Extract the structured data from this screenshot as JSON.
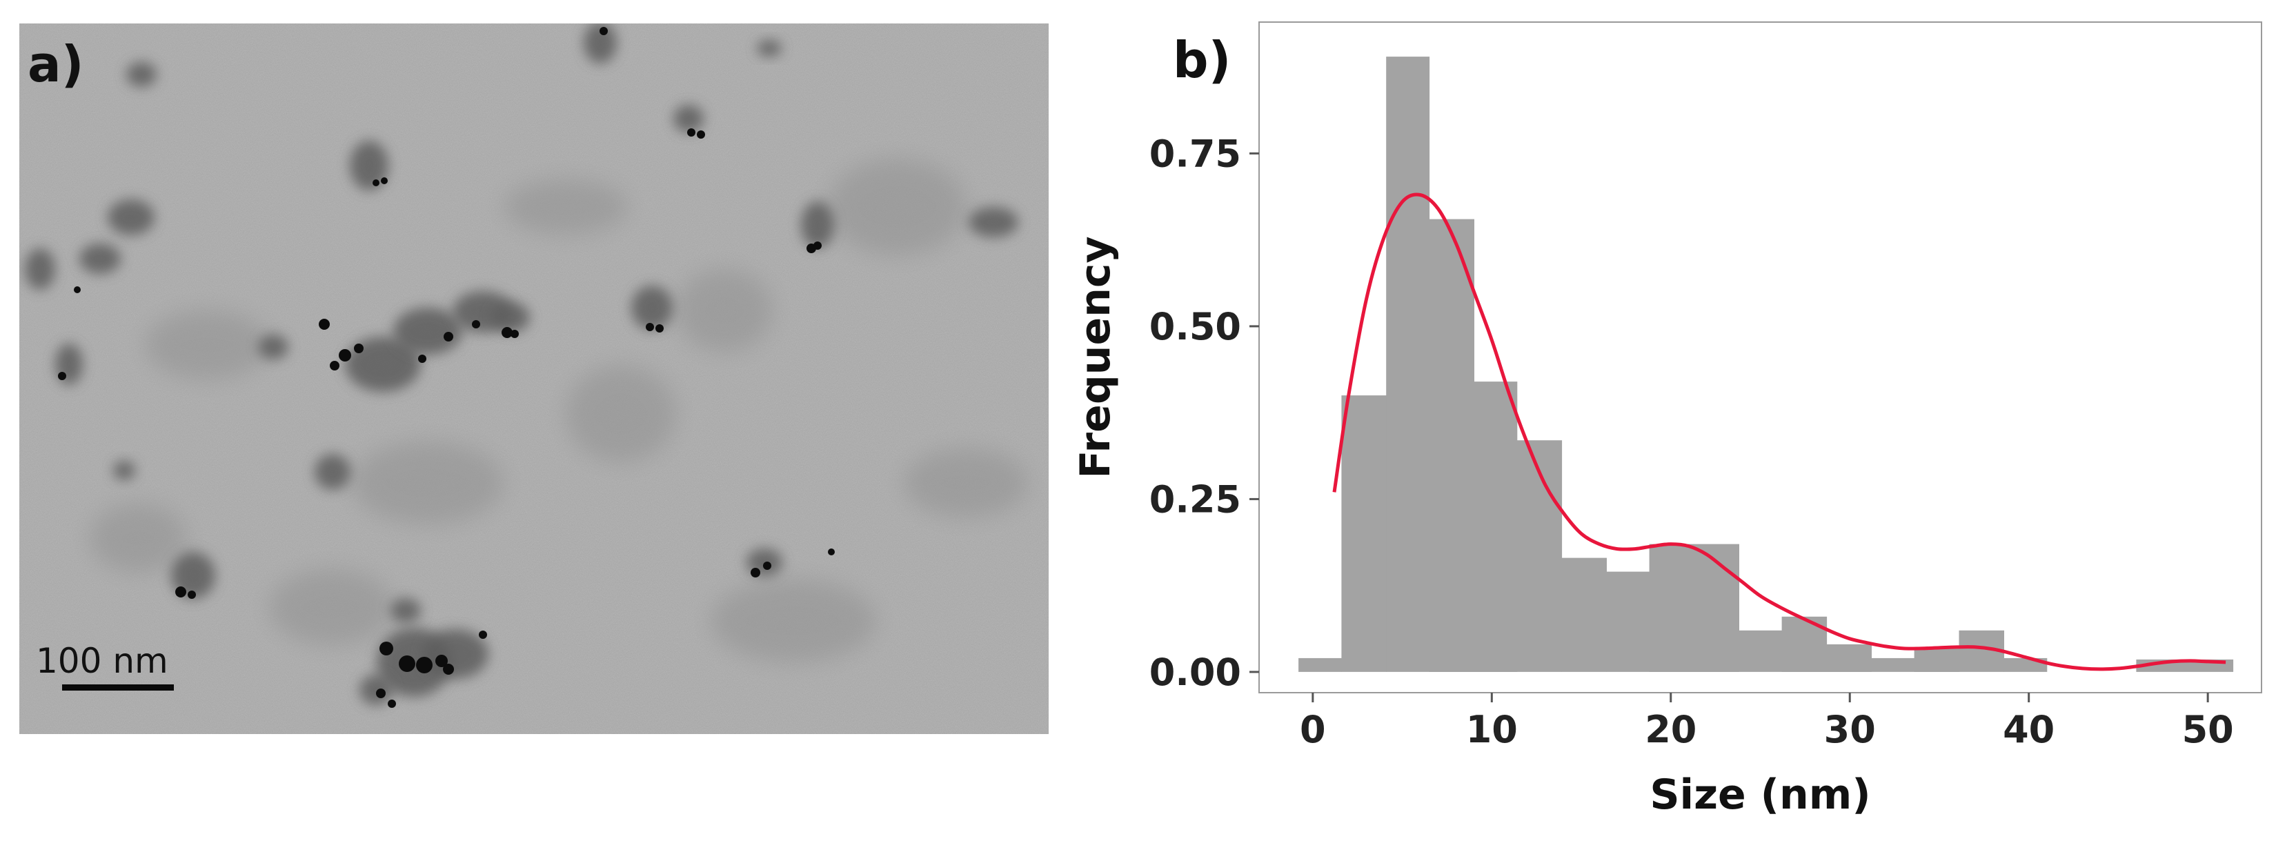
{
  "panel_a": {
    "label": "a)",
    "scale_bar_label": "100 nm",
    "image_type": "grayscale-electron-micrograph"
  },
  "chart_data": {
    "type": "bar",
    "panel_label": "b)",
    "title": "",
    "xlabel": "Size (nm)",
    "ylabel": "Frequency",
    "xlim": [
      -3,
      53
    ],
    "ylim": [
      -0.03,
      0.94
    ],
    "xticks": [
      0,
      10,
      20,
      30,
      40,
      50
    ],
    "yticks": [
      0.0,
      0.25,
      0.5,
      0.75
    ],
    "ytick_labels": [
      "0.00",
      "0.25",
      "0.50",
      "0.75"
    ],
    "grid": false,
    "legend": "none",
    "histogram": {
      "bins": [
        {
          "x0": -0.8,
          "x1": 1.6,
          "value": 0.02
        },
        {
          "x0": 1.6,
          "x1": 4.1,
          "value": 0.4
        },
        {
          "x0": 4.1,
          "x1": 6.5,
          "value": 0.89
        },
        {
          "x0": 6.5,
          "x1": 9.0,
          "value": 0.655
        },
        {
          "x0": 9.0,
          "x1": 11.4,
          "value": 0.42
        },
        {
          "x0": 11.4,
          "x1": 13.9,
          "value": 0.335
        },
        {
          "x0": 13.9,
          "x1": 16.4,
          "value": 0.165
        },
        {
          "x0": 16.4,
          "x1": 18.8,
          "value": 0.145
        },
        {
          "x0": 18.8,
          "x1": 21.3,
          "value": 0.185
        },
        {
          "x0": 21.3,
          "x1": 23.8,
          "value": 0.185
        },
        {
          "x0": 23.8,
          "x1": 26.2,
          "value": 0.06
        },
        {
          "x0": 26.2,
          "x1": 28.7,
          "value": 0.08
        },
        {
          "x0": 28.7,
          "x1": 31.2,
          "value": 0.04
        },
        {
          "x0": 31.2,
          "x1": 33.6,
          "value": 0.02
        },
        {
          "x0": 33.6,
          "x1": 36.1,
          "value": 0.035
        },
        {
          "x0": 36.1,
          "x1": 38.6,
          "value": 0.06
        },
        {
          "x0": 38.6,
          "x1": 41.0,
          "value": 0.02
        },
        {
          "x0": 41.0,
          "x1": 43.5,
          "value": 0.0
        },
        {
          "x0": 43.5,
          "x1": 46.0,
          "value": 0.0
        },
        {
          "x0": 46.0,
          "x1": 51.4,
          "value": 0.018
        }
      ],
      "color": "#a3a3a3"
    },
    "density_curve": {
      "color": "#e8163c",
      "x": [
        1.2,
        2,
        3,
        4,
        5,
        6,
        7,
        8,
        9,
        10,
        11,
        12,
        13,
        14,
        15,
        16,
        17,
        18,
        19,
        20,
        21,
        22,
        23,
        24,
        25,
        26,
        27,
        28,
        29,
        30,
        31,
        32,
        33,
        34,
        35,
        36,
        37,
        38,
        39,
        40,
        41,
        42,
        43,
        44,
        45,
        46,
        47,
        48,
        49,
        50,
        51
      ],
      "y": [
        0.26,
        0.4,
        0.54,
        0.63,
        0.68,
        0.69,
        0.67,
        0.62,
        0.55,
        0.48,
        0.4,
        0.33,
        0.27,
        0.23,
        0.2,
        0.185,
        0.178,
        0.178,
        0.182,
        0.185,
        0.182,
        0.17,
        0.15,
        0.13,
        0.11,
        0.095,
        0.082,
        0.07,
        0.058,
        0.048,
        0.042,
        0.037,
        0.034,
        0.034,
        0.035,
        0.036,
        0.036,
        0.033,
        0.027,
        0.02,
        0.013,
        0.008,
        0.005,
        0.004,
        0.005,
        0.008,
        0.012,
        0.015,
        0.016,
        0.015,
        0.014
      ]
    }
  }
}
